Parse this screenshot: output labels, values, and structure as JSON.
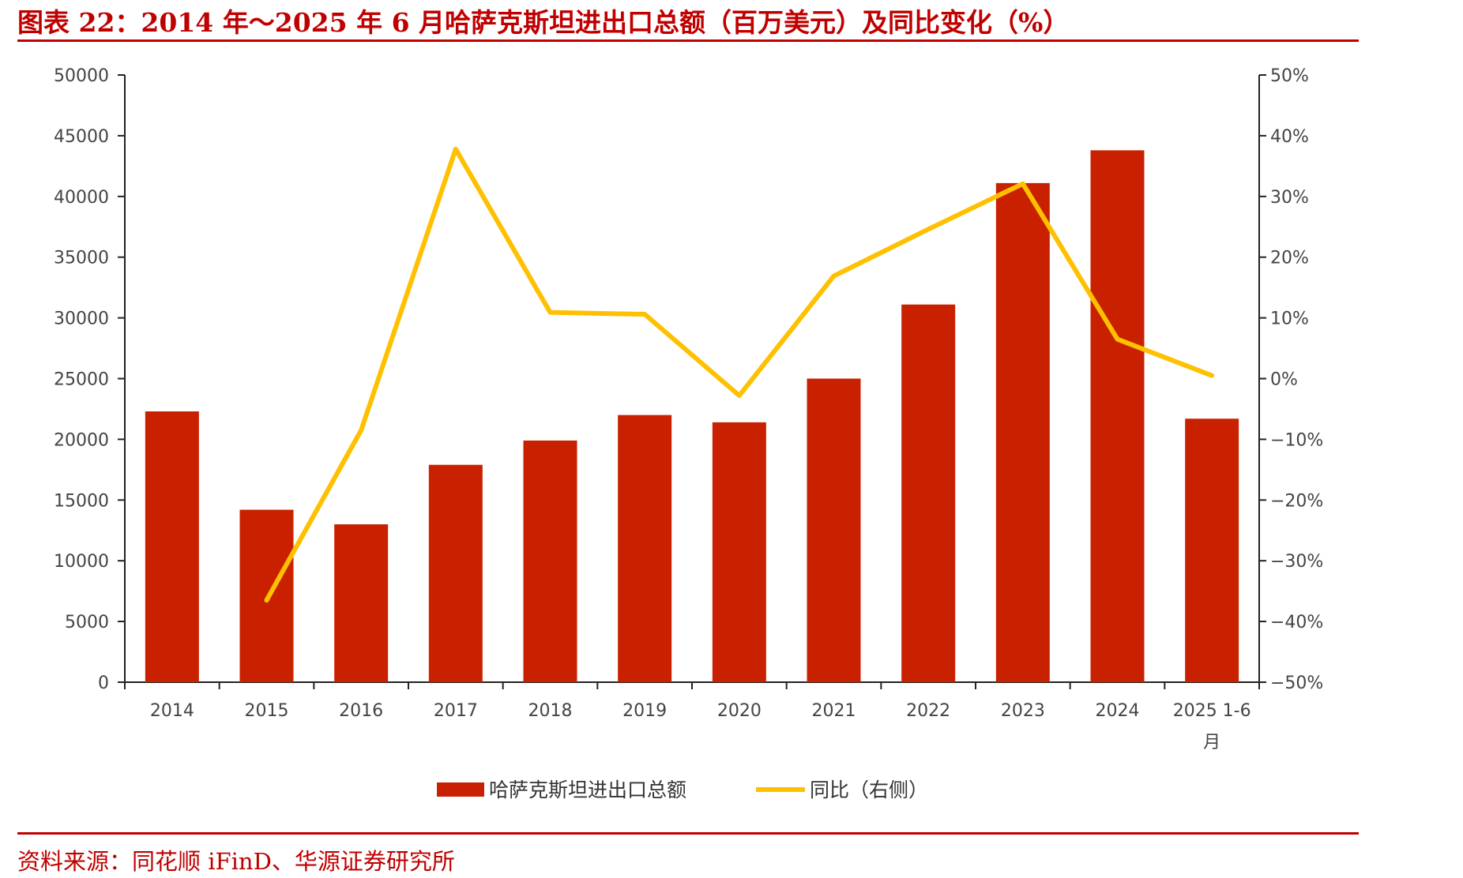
{
  "header": {
    "title": "图表 22：2014 年～2025 年 6 月哈萨克斯坦进出口总额（百万美元）及同比变化（%）"
  },
  "footer": {
    "source": "资料来源：同花顺 iFinD、华源证券研究所"
  },
  "colors": {
    "accent": "#c00000",
    "bar": "#c92100",
    "line": "#ffc000",
    "axis": "#222222"
  },
  "chart_data": {
    "type": "bar",
    "categories": [
      "2014",
      "2015",
      "2016",
      "2017",
      "2018",
      "2019",
      "2020",
      "2021",
      "2022",
      "2023",
      "2024",
      "2025 1-6月"
    ],
    "category_lines": [
      [
        "2014"
      ],
      [
        "2015"
      ],
      [
        "2016"
      ],
      [
        "2017"
      ],
      [
        "2018"
      ],
      [
        "2019"
      ],
      [
        "2020"
      ],
      [
        "2021"
      ],
      [
        "2022"
      ],
      [
        "2023"
      ],
      [
        "2024"
      ],
      [
        "2025 1-6",
        "月"
      ]
    ],
    "series": [
      {
        "name": "哈萨克斯坦进出口总额",
        "type": "bar",
        "axis": "left",
        "values": [
          22300,
          14200,
          13000,
          17900,
          19900,
          22000,
          21400,
          25000,
          31100,
          41100,
          43800,
          21700
        ]
      },
      {
        "name": "同比（右侧）",
        "type": "line",
        "axis": "right",
        "values": [
          null,
          -36.5,
          -8.5,
          37.8,
          10.9,
          10.6,
          -2.8,
          16.9,
          24.6,
          32.1,
          6.5,
          0.5
        ]
      }
    ],
    "y_left": {
      "lim": [
        0,
        50000
      ],
      "ticks": [
        0,
        5000,
        10000,
        15000,
        20000,
        25000,
        30000,
        35000,
        40000,
        45000,
        50000
      ],
      "tick_labels": [
        "0",
        "5000",
        "10000",
        "15000",
        "20000",
        "25000",
        "30000",
        "35000",
        "40000",
        "45000",
        "50000"
      ]
    },
    "y_right": {
      "lim": [
        -50,
        50
      ],
      "ticks": [
        -50,
        -40,
        -30,
        -20,
        -10,
        0,
        10,
        20,
        30,
        40,
        50
      ],
      "tick_labels": [
        "−50%",
        "−40%",
        "−30%",
        "−20%",
        "−10%",
        "0%",
        "10%",
        "20%",
        "30%",
        "40%",
        "50%"
      ]
    },
    "legend_position": "bottom-center",
    "grid": false
  }
}
